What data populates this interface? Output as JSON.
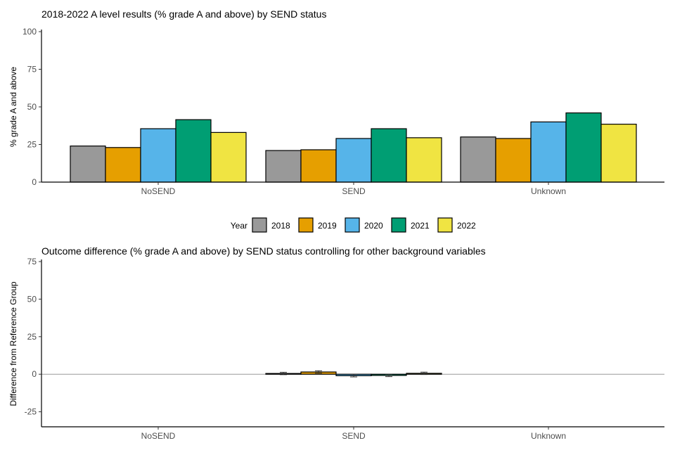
{
  "chart_data": [
    {
      "type": "bar",
      "title": "2018-2022 A level results (% grade A and above) by SEND status",
      "xlabel": "",
      "ylabel": "% grade A and above",
      "ylim": [
        0,
        100
      ],
      "yticks": [
        0,
        25,
        50,
        75,
        100
      ],
      "categories": [
        "NoSEND",
        "SEND",
        "Unknown"
      ],
      "series": [
        {
          "name": "2018",
          "color": "#999999",
          "values": [
            24,
            21,
            30
          ]
        },
        {
          "name": "2019",
          "color": "#E69F00",
          "values": [
            23,
            21.5,
            29
          ]
        },
        {
          "name": "2020",
          "color": "#56B4E9",
          "values": [
            35.5,
            29,
            40
          ]
        },
        {
          "name": "2021",
          "color": "#009E73",
          "values": [
            41.5,
            35.5,
            46
          ]
        },
        {
          "name": "2022",
          "color": "#F0E442",
          "values": [
            33,
            29.5,
            38.5
          ]
        }
      ]
    },
    {
      "type": "bar",
      "title": "Outcome difference (% grade A and above) by SEND status controlling for other background variables",
      "xlabel": "",
      "ylabel": "Difference from Reference Group",
      "ylim": [
        -35,
        75
      ],
      "yticks": [
        -25,
        0,
        25,
        50,
        75
      ],
      "reference_line": 0,
      "categories": [
        "NoSEND",
        "SEND",
        "Unknown"
      ],
      "series": [
        {
          "name": "2018",
          "color": "#999999",
          "values": [
            null,
            0.5,
            null
          ],
          "error": [
            null,
            0.8,
            null
          ]
        },
        {
          "name": "2019",
          "color": "#E69F00",
          "values": [
            null,
            1.5,
            null
          ],
          "error": [
            null,
            0.8,
            null
          ]
        },
        {
          "name": "2020",
          "color": "#56B4E9",
          "values": [
            null,
            -1,
            null
          ],
          "error": [
            null,
            0.8,
            null
          ]
        },
        {
          "name": "2021",
          "color": "#009E73",
          "values": [
            null,
            -0.8,
            null
          ],
          "error": [
            null,
            0.8,
            null
          ]
        },
        {
          "name": "2022",
          "color": "#F0E442",
          "values": [
            null,
            0.6,
            null
          ],
          "error": [
            null,
            0.8,
            null
          ]
        }
      ]
    }
  ],
  "legend": {
    "title": "Year",
    "items": [
      "2018",
      "2019",
      "2020",
      "2021",
      "2022"
    ]
  }
}
